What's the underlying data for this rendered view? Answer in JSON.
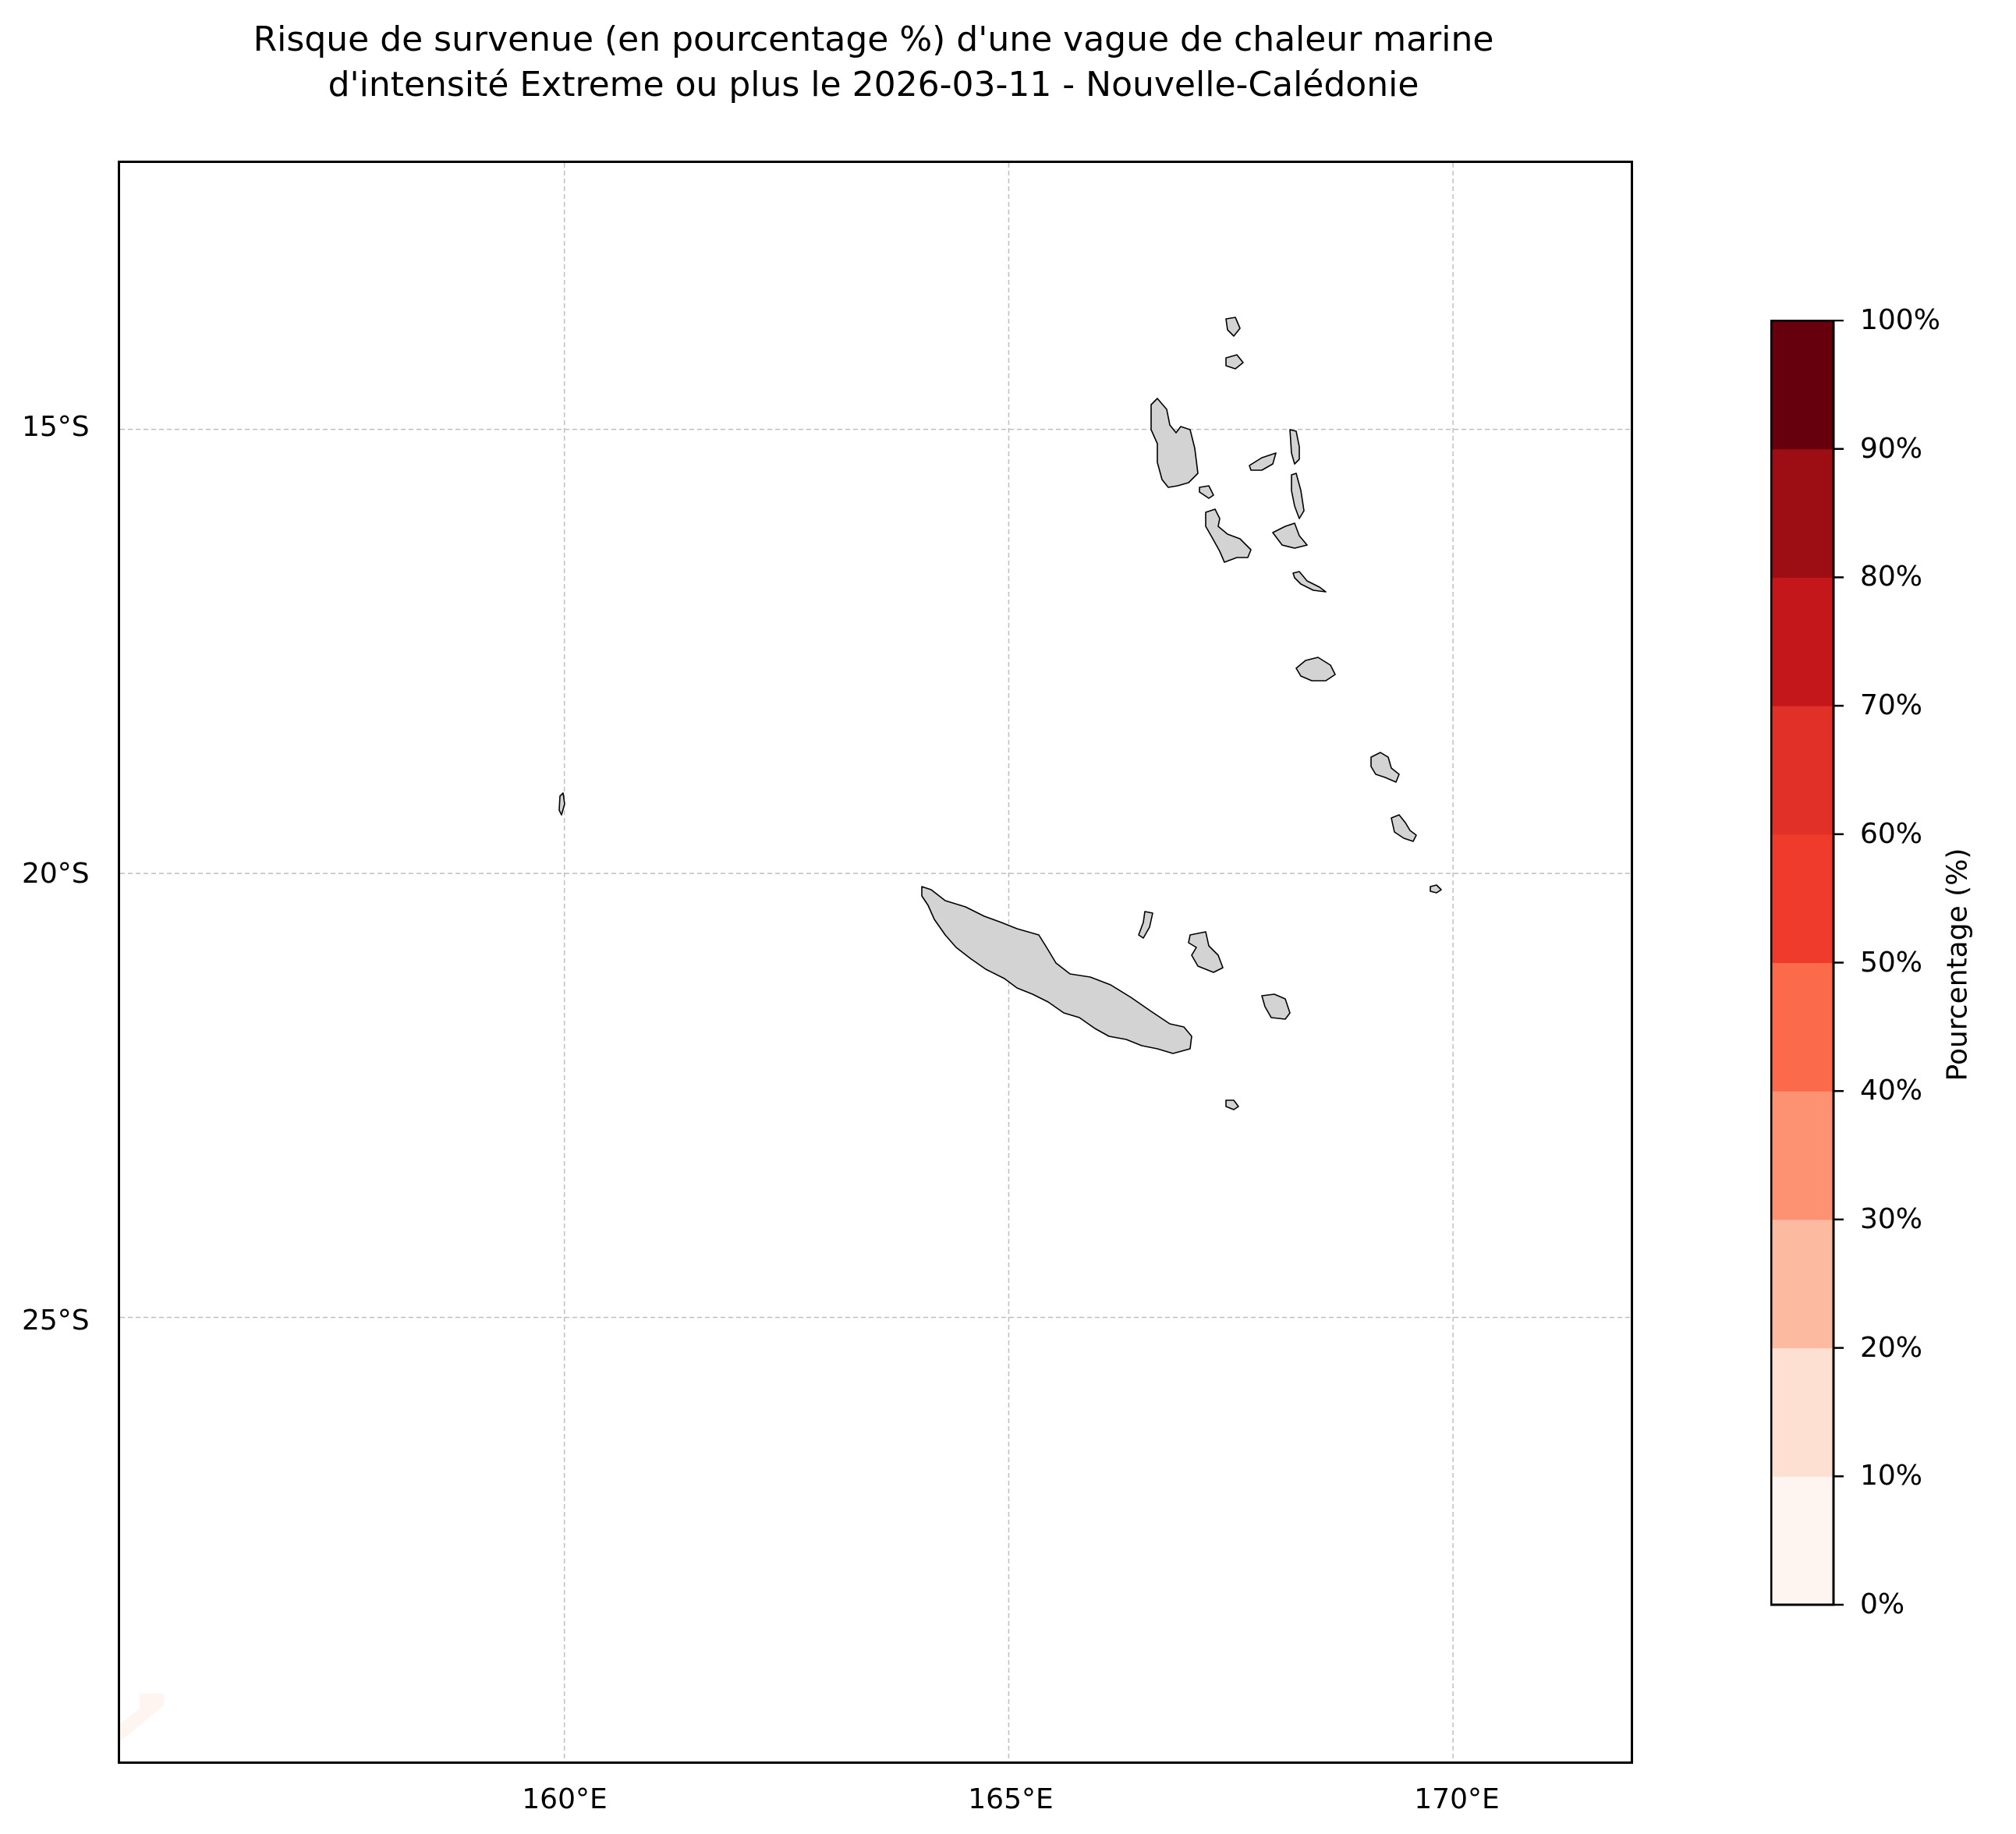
{
  "title": {
    "line1": "Risque de survenue (en pourcentage %) d'une vague de chaleur marine",
    "line2": "d'intensité Extreme ou plus le 2026-03-11 - Nouvelle-Calédonie"
  },
  "map": {
    "lon_range": [
      155,
      172
    ],
    "lat_range": [
      -30,
      -12
    ],
    "gridlines": true,
    "land_color": "#d3d3d3",
    "coastline_color": "#000000",
    "lat_ticks": [
      {
        "value": -15,
        "label": "15°S"
      },
      {
        "value": -20,
        "label": "20°S"
      },
      {
        "value": -25,
        "label": "25°S"
      }
    ],
    "lon_ticks": [
      {
        "value": 160,
        "label": "160°E"
      },
      {
        "value": 165,
        "label": "165°E"
      },
      {
        "value": 170,
        "label": "170°E"
      }
    ]
  },
  "colorbar": {
    "label": "Pourcentage (%)",
    "colormap": "Reds",
    "bins": [
      {
        "range": [
          0,
          10
        ],
        "color": "#fff5f0"
      },
      {
        "range": [
          10,
          20
        ],
        "color": "#fee0d2"
      },
      {
        "range": [
          20,
          30
        ],
        "color": "#fcbba1"
      },
      {
        "range": [
          30,
          40
        ],
        "color": "#fc9272"
      },
      {
        "range": [
          40,
          50
        ],
        "color": "#fb6a4a"
      },
      {
        "range": [
          50,
          60
        ],
        "color": "#ef3b2c"
      },
      {
        "range": [
          60,
          70
        ],
        "color": "#e03028"
      },
      {
        "range": [
          70,
          80
        ],
        "color": "#c4171c"
      },
      {
        "range": [
          80,
          90
        ],
        "color": "#9c0d14"
      },
      {
        "range": [
          90,
          100
        ],
        "color": "#67000d"
      }
    ],
    "ticks": [
      "0%",
      "10%",
      "20%",
      "30%",
      "40%",
      "50%",
      "60%",
      "70%",
      "80%",
      "90%",
      "100%"
    ]
  }
}
